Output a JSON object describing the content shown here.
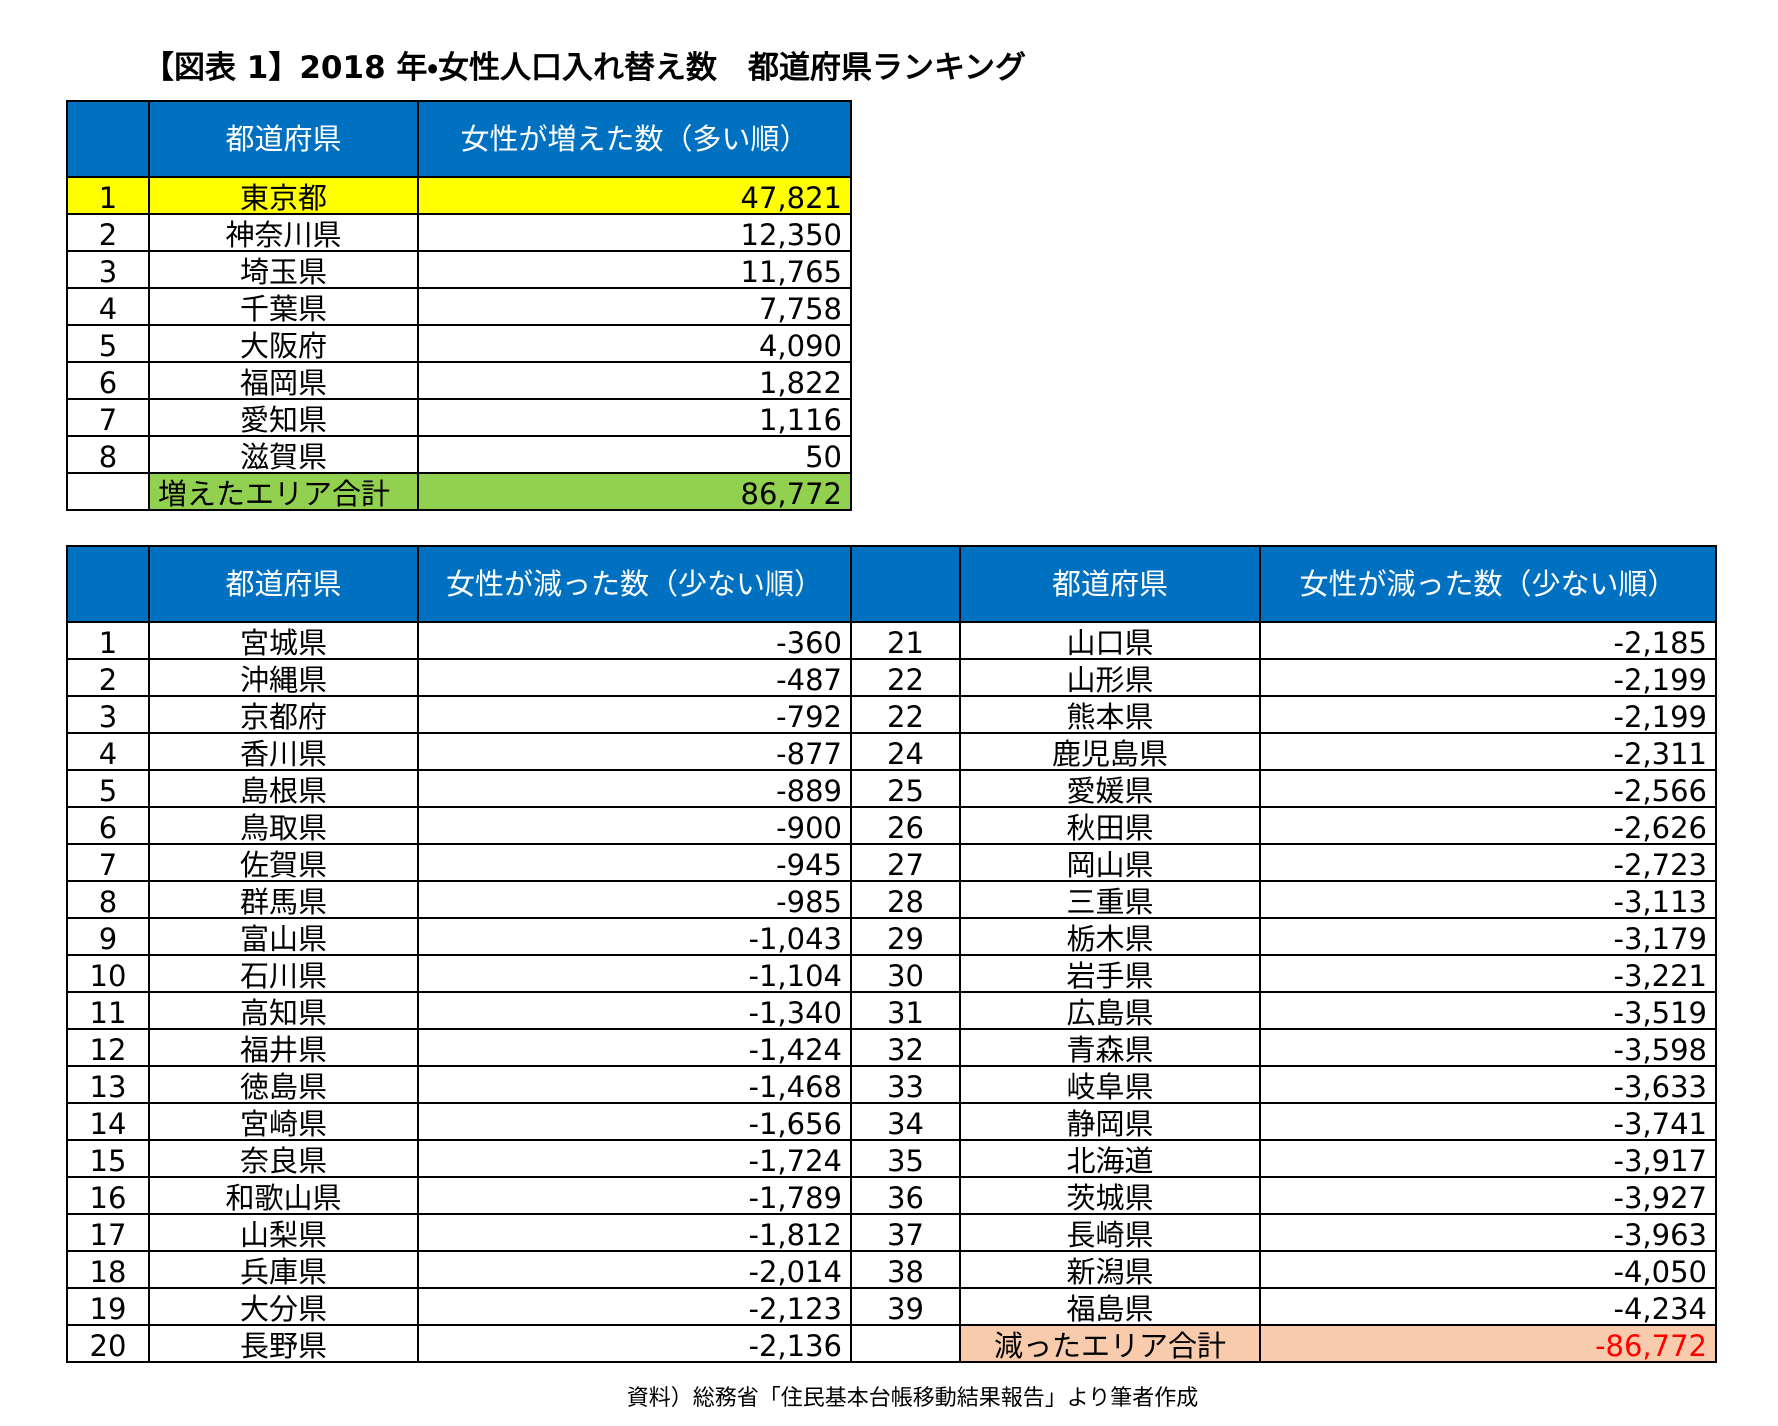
{
  "title": "【図表 1】2018 年・女性人口入れ替え数　都道府県ランキング",
  "top_table": {
    "headers": [
      "都道府県",
      "女性が増えた数（多い順）"
    ],
    "rows": [
      {
        "rank": "1",
        "prefecture": "東京都",
        "value": "47,821"
      },
      {
        "rank": "2",
        "prefecture": "神奈川県",
        "value": "12,350"
      },
      {
        "rank": "3",
        "prefecture": "埼玉県",
        "value": "11,765"
      },
      {
        "rank": "4",
        "prefecture": "千葉県",
        "value": "7,758"
      },
      {
        "rank": "5",
        "prefecture": "大阪府",
        "value": "4,090"
      },
      {
        "rank": "6",
        "prefecture": "福岡県",
        "value": "1,822"
      },
      {
        "rank": "7",
        "prefecture": "愛知県",
        "value": "1,116"
      },
      {
        "rank": "8",
        "prefecture": "滋賀県",
        "value": "50"
      }
    ],
    "total": {
      "label": "増えたエリア合計",
      "value": "86,772"
    }
  },
  "bottom_table": {
    "left_headers": [
      "都道府県",
      "女性が減った数（少ない順）"
    ],
    "right_headers": [
      "都道府県",
      "女性が減った数（少ない順）"
    ],
    "left_rows": [
      {
        "rank": "1",
        "prefecture": "宮城県",
        "value": "-360"
      },
      {
        "rank": "2",
        "prefecture": "沖縄県",
        "value": "-487"
      },
      {
        "rank": "3",
        "prefecture": "京都府",
        "value": "-792"
      },
      {
        "rank": "4",
        "prefecture": "香川県",
        "value": "-877"
      },
      {
        "rank": "5",
        "prefecture": "島根県",
        "value": "-889"
      },
      {
        "rank": "6",
        "prefecture": "鳥取県",
        "value": "-900"
      },
      {
        "rank": "7",
        "prefecture": "佐賀県",
        "value": "-945"
      },
      {
        "rank": "8",
        "prefecture": "群馬県",
        "value": "-985"
      },
      {
        "rank": "9",
        "prefecture": "富山県",
        "value": "-1,043"
      },
      {
        "rank": "10",
        "prefecture": "石川県",
        "value": "-1,104"
      },
      {
        "rank": "11",
        "prefecture": "高知県",
        "value": "-1,340"
      },
      {
        "rank": "12",
        "prefecture": "福井県",
        "value": "-1,424"
      },
      {
        "rank": "13",
        "prefecture": "徳島県",
        "value": "-1,468"
      },
      {
        "rank": "14",
        "prefecture": "宮崎県",
        "value": "-1,656"
      },
      {
        "rank": "15",
        "prefecture": "奈良県",
        "value": "-1,724"
      },
      {
        "rank": "16",
        "prefecture": "和歌山県",
        "value": "-1,789"
      },
      {
        "rank": "17",
        "prefecture": "山梨県",
        "value": "-1,812"
      },
      {
        "rank": "18",
        "prefecture": "兵庫県",
        "value": "-2,014"
      },
      {
        "rank": "19",
        "prefecture": "大分県",
        "value": "-2,123"
      },
      {
        "rank": "20",
        "prefecture": "長野県",
        "value": "-2,136"
      }
    ],
    "right_rows": [
      {
        "rank": "21",
        "prefecture": "山口県",
        "value": "-2,185"
      },
      {
        "rank": "22",
        "prefecture": "山形県",
        "value": "-2,199"
      },
      {
        "rank": "22",
        "prefecture": "熊本県",
        "value": "-2,199"
      },
      {
        "rank": "24",
        "prefecture": "鹿児島県",
        "value": "-2,311"
      },
      {
        "rank": "25",
        "prefecture": "愛媛県",
        "value": "-2,566"
      },
      {
        "rank": "26",
        "prefecture": "秋田県",
        "value": "-2,626"
      },
      {
        "rank": "27",
        "prefecture": "岡山県",
        "value": "-2,723"
      },
      {
        "rank": "28",
        "prefecture": "三重県",
        "value": "-3,113"
      },
      {
        "rank": "29",
        "prefecture": "栃木県",
        "value": "-3,179"
      },
      {
        "rank": "30",
        "prefecture": "岩手県",
        "value": "-3,221"
      },
      {
        "rank": "31",
        "prefecture": "広島県",
        "value": "-3,519"
      },
      {
        "rank": "32",
        "prefecture": "青森県",
        "value": "-3,598"
      },
      {
        "rank": "33",
        "prefecture": "岐阜県",
        "value": "-3,633"
      },
      {
        "rank": "34",
        "prefecture": "静岡県",
        "value": "-3,741"
      },
      {
        "rank": "35",
        "prefecture": "北海道",
        "value": "-3,917"
      },
      {
        "rank": "36",
        "prefecture": "茨城県",
        "value": "-3,927"
      },
      {
        "rank": "37",
        "prefecture": "長崎県",
        "value": "-3,963"
      },
      {
        "rank": "38",
        "prefecture": "新潟県",
        "value": "-4,050"
      },
      {
        "rank": "39",
        "prefecture": "福島県",
        "value": "-4,234"
      }
    ],
    "total": {
      "label": "減ったエリア合計",
      "value": "-86,772"
    }
  },
  "source": "資料）総務省「住民基本台帳移動結果報告」より筆者作成"
}
